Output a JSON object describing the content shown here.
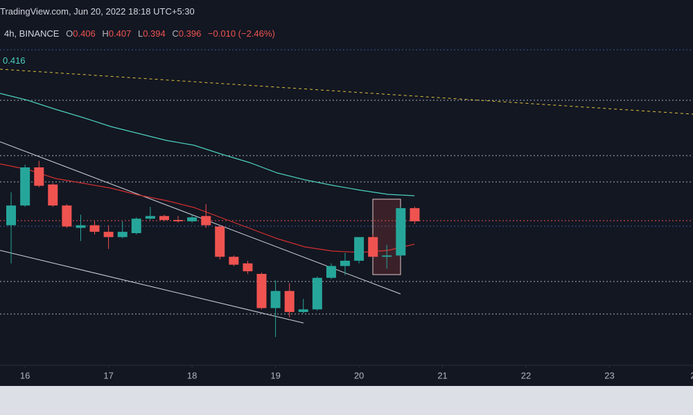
{
  "chart_data": {
    "type": "candlestick",
    "source": "TradingView.com, Jun 20, 2022 18:18 UTC+5:30",
    "interval": "4h, BINANCE",
    "ohlc_legend": [
      {
        "label": "O",
        "value": "0.406"
      },
      {
        "label": "H",
        "value": "0.407"
      },
      {
        "label": "L",
        "value": "0.394"
      },
      {
        "label": "C",
        "value": "0.396"
      }
    ],
    "change": "−0.010 (−2.46%)",
    "indicator_value": "0.416",
    "up_color": "#26a69a",
    "down_color": "#ef5350",
    "xlim": [
      15.7,
      24
    ],
    "xticks": [
      16,
      17,
      18,
      19,
      20,
      21,
      22,
      23,
      {
        "value": 24,
        "label": "2"
      }
    ],
    "ylim": [
      0.2855,
      0.5643
    ],
    "candles": [
      {
        "x": 15.833,
        "open": 0.393,
        "high": 0.418,
        "low": 0.364,
        "close": 0.408
      },
      {
        "x": 16,
        "open": 0.408,
        "high": 0.439,
        "low": 0.407,
        "close": 0.437
      },
      {
        "x": 16.167,
        "open": 0.437,
        "high": 0.442,
        "low": 0.422,
        "close": 0.423
      },
      {
        "x": 16.333,
        "open": 0.424,
        "high": 0.425,
        "low": 0.407,
        "close": 0.408
      },
      {
        "x": 16.5,
        "open": 0.408,
        "high": 0.409,
        "low": 0.391,
        "close": 0.392
      },
      {
        "x": 16.667,
        "open": 0.391,
        "high": 0.401,
        "low": 0.381,
        "close": 0.393
      },
      {
        "x": 16.833,
        "open": 0.393,
        "high": 0.396,
        "low": 0.386,
        "close": 0.388
      },
      {
        "x": 17,
        "open": 0.388,
        "high": 0.393,
        "low": 0.375,
        "close": 0.384
      },
      {
        "x": 17.167,
        "open": 0.384,
        "high": 0.396,
        "low": 0.383,
        "close": 0.388
      },
      {
        "x": 17.333,
        "open": 0.387,
        "high": 0.399,
        "low": 0.386,
        "close": 0.398
      },
      {
        "x": 17.5,
        "open": 0.398,
        "high": 0.407,
        "low": 0.397,
        "close": 0.4
      },
      {
        "x": 17.667,
        "open": 0.4,
        "high": 0.401,
        "low": 0.396,
        "close": 0.397
      },
      {
        "x": 17.833,
        "open": 0.397,
        "high": 0.4,
        "low": 0.395,
        "close": 0.396
      },
      {
        "x": 18,
        "open": 0.396,
        "high": 0.401,
        "low": 0.395,
        "close": 0.399
      },
      {
        "x": 18.167,
        "open": 0.4,
        "high": 0.409,
        "low": 0.391,
        "close": 0.393
      },
      {
        "x": 18.333,
        "open": 0.392,
        "high": 0.393,
        "low": 0.367,
        "close": 0.369
      },
      {
        "x": 18.5,
        "open": 0.369,
        "high": 0.37,
        "low": 0.362,
        "close": 0.363
      },
      {
        "x": 18.667,
        "open": 0.364,
        "high": 0.366,
        "low": 0.356,
        "close": 0.358
      },
      {
        "x": 18.833,
        "open": 0.356,
        "high": 0.357,
        "low": 0.329,
        "close": 0.33
      },
      {
        "x": 19,
        "open": 0.33,
        "high": 0.351,
        "low": 0.308,
        "close": 0.343
      },
      {
        "x": 19.167,
        "open": 0.343,
        "high": 0.349,
        "low": 0.323,
        "close": 0.327
      },
      {
        "x": 19.333,
        "open": 0.327,
        "high": 0.337,
        "low": 0.326,
        "close": 0.329
      },
      {
        "x": 19.5,
        "open": 0.329,
        "high": 0.354,
        "low": 0.328,
        "close": 0.353
      },
      {
        "x": 19.667,
        "open": 0.353,
        "high": 0.364,
        "low": 0.352,
        "close": 0.362
      },
      {
        "x": 19.833,
        "open": 0.362,
        "high": 0.372,
        "low": 0.355,
        "close": 0.366
      },
      {
        "x": 20,
        "open": 0.366,
        "high": 0.384,
        "low": 0.364,
        "close": 0.384
      },
      {
        "x": 20.167,
        "open": 0.384,
        "high": 0.386,
        "low": 0.369,
        "close": 0.369
      },
      {
        "x": 20.333,
        "open": 0.369,
        "high": 0.378,
        "low": 0.36,
        "close": 0.37
      },
      {
        "x": 20.5,
        "open": 0.37,
        "high": 0.407,
        "low": 0.369,
        "close": 0.406
      },
      {
        "x": 20.667,
        "open": 0.406,
        "high": 0.407,
        "low": 0.394,
        "close": 0.396
      }
    ]
  }
}
